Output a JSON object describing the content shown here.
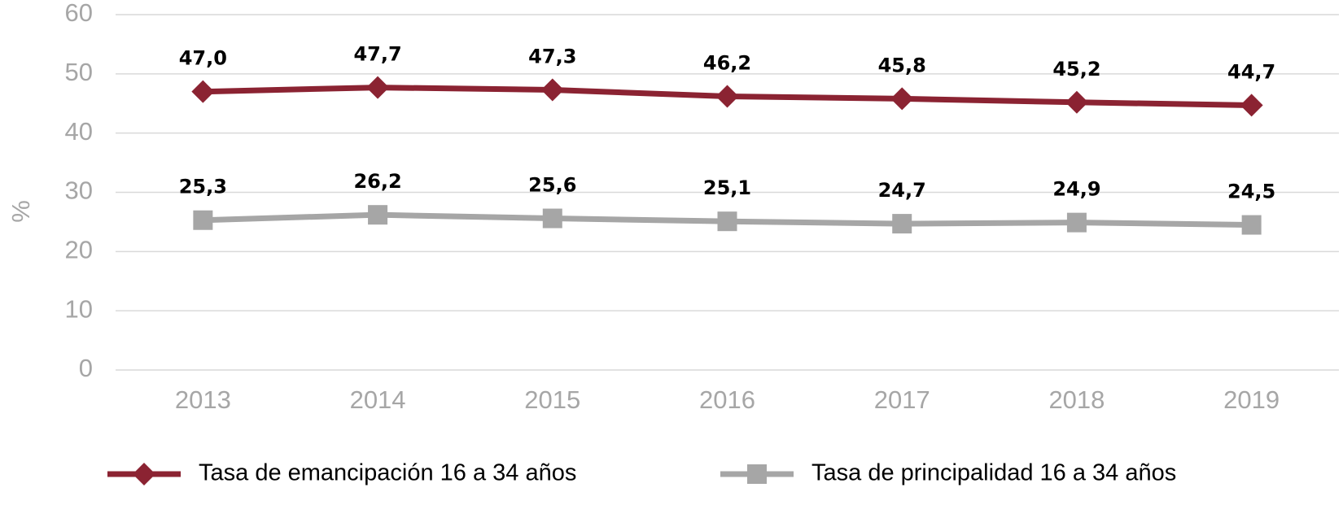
{
  "chart_data": {
    "type": "line",
    "y_label": "%",
    "categories": [
      "2013",
      "2014",
      "2015",
      "2016",
      "2017",
      "2018",
      "2019"
    ],
    "series": [
      {
        "name": "Tasa de emancipación 16 a 34 años",
        "color": "#8b2332",
        "marker": "diamond",
        "values": [
          47.0,
          47.7,
          47.3,
          46.2,
          45.8,
          45.2,
          44.7
        ],
        "value_labels": [
          "47,0",
          "47,7",
          "47,3",
          "46,2",
          "45,8",
          "45,2",
          "44,7"
        ]
      },
      {
        "name": "Tasa de principalidad 16 a 34 años",
        "color": "#a6a6a6",
        "marker": "square",
        "values": [
          25.3,
          26.2,
          25.6,
          25.1,
          24.7,
          24.9,
          24.5
        ],
        "value_labels": [
          "25,3",
          "26,2",
          "25,6",
          "25,1",
          "24,7",
          "24,9",
          "24,5"
        ]
      }
    ],
    "ylim": [
      0,
      60
    ],
    "yticks": [
      0,
      10,
      20,
      30,
      40,
      50,
      60
    ],
    "grid": true,
    "legend": "bottom"
  }
}
